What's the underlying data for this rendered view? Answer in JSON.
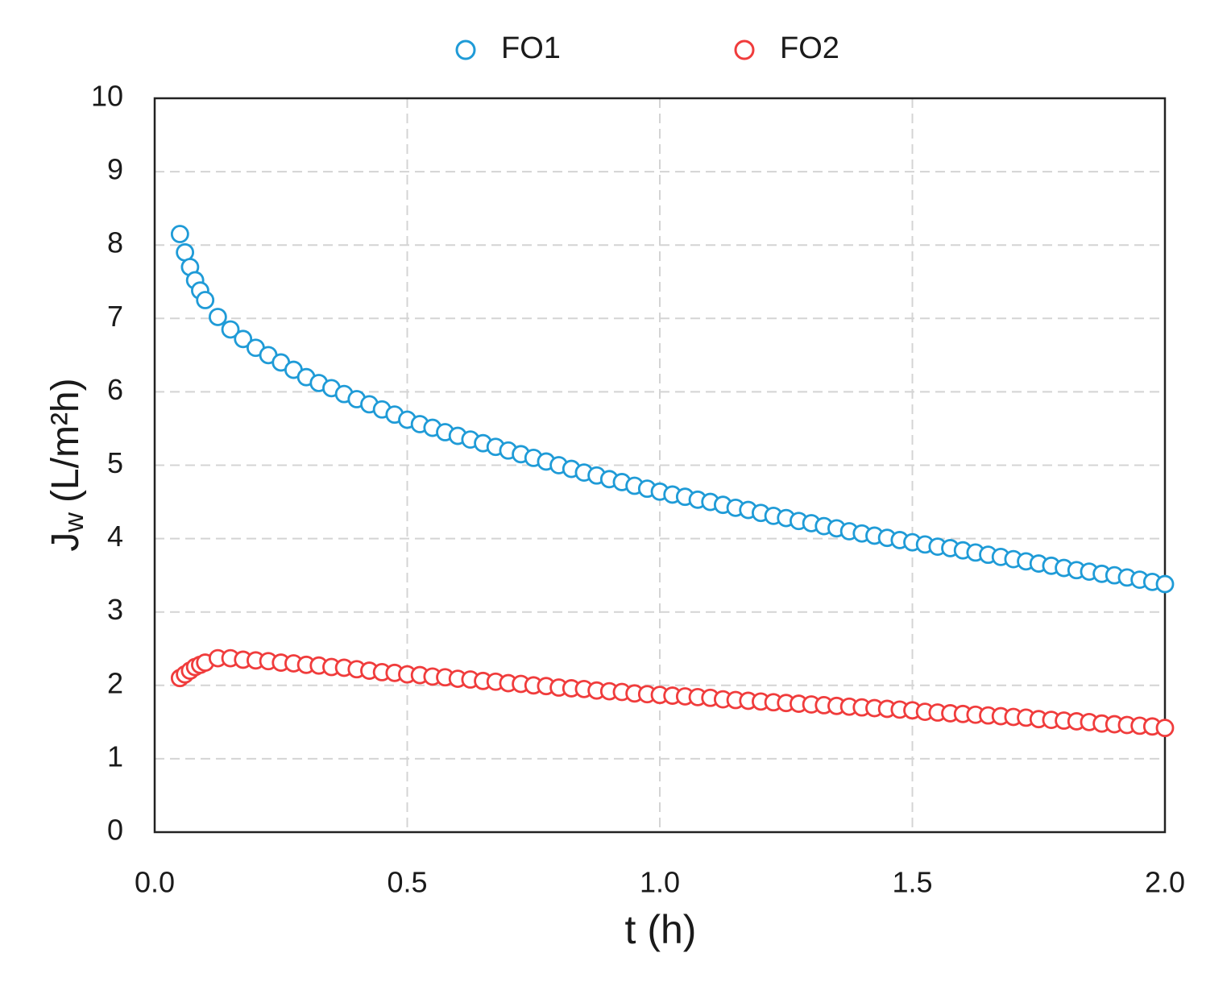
{
  "chart_data": {
    "type": "scatter",
    "xlabel": "t (h)",
    "ylabel": {
      "main": "J",
      "sub": "w",
      "rest": "(L/m²h)"
    },
    "xlim": [
      0,
      2
    ],
    "ylim": [
      0,
      10
    ],
    "xticks": [
      {
        "value": 0,
        "label": "0.0"
      },
      {
        "value": 0.5,
        "label": "0.5"
      },
      {
        "value": 1,
        "label": "1.0"
      },
      {
        "value": 1.5,
        "label": "1.5"
      },
      {
        "value": 2,
        "label": "2.0"
      }
    ],
    "yticks": [
      0,
      1,
      2,
      3,
      4,
      5,
      6,
      7,
      8,
      9,
      10
    ],
    "grid": true,
    "legend": "top",
    "x": [
      0.05,
      0.06,
      0.07,
      0.08,
      0.09,
      0.1,
      0.125,
      0.15,
      0.175,
      0.2,
      0.225,
      0.25,
      0.275,
      0.3,
      0.325,
      0.35,
      0.375,
      0.4,
      0.425,
      0.45,
      0.475,
      0.5,
      0.525,
      0.55,
      0.575,
      0.6,
      0.625,
      0.65,
      0.675,
      0.7,
      0.725,
      0.75,
      0.775,
      0.8,
      0.825,
      0.85,
      0.875,
      0.9,
      0.925,
      0.95,
      0.975,
      1.0,
      1.025,
      1.05,
      1.075,
      1.1,
      1.125,
      1.15,
      1.175,
      1.2,
      1.225,
      1.25,
      1.275,
      1.3,
      1.325,
      1.35,
      1.375,
      1.4,
      1.425,
      1.45,
      1.475,
      1.5,
      1.525,
      1.55,
      1.575,
      1.6,
      1.625,
      1.65,
      1.675,
      1.7,
      1.725,
      1.75,
      1.775,
      1.8,
      1.825,
      1.85,
      1.875,
      1.9,
      1.925,
      1.95,
      1.975,
      2.0
    ],
    "series": [
      {
        "name": "FO1",
        "color": "#1f9bd7",
        "values": [
          8.15,
          7.9,
          7.7,
          7.52,
          7.38,
          7.25,
          7.02,
          6.85,
          6.72,
          6.6,
          6.5,
          6.4,
          6.3,
          6.2,
          6.12,
          6.05,
          5.97,
          5.9,
          5.83,
          5.76,
          5.69,
          5.62,
          5.56,
          5.51,
          5.45,
          5.4,
          5.35,
          5.3,
          5.25,
          5.2,
          5.15,
          5.1,
          5.05,
          5.0,
          4.95,
          4.9,
          4.86,
          4.81,
          4.77,
          4.72,
          4.68,
          4.64,
          4.6,
          4.57,
          4.53,
          4.5,
          4.46,
          4.42,
          4.39,
          4.35,
          4.31,
          4.28,
          4.24,
          4.21,
          4.17,
          4.14,
          4.1,
          4.07,
          4.04,
          4.01,
          3.98,
          3.95,
          3.92,
          3.89,
          3.87,
          3.84,
          3.81,
          3.78,
          3.75,
          3.72,
          3.69,
          3.66,
          3.63,
          3.6,
          3.57,
          3.55,
          3.52,
          3.5,
          3.47,
          3.44,
          3.41,
          3.38
        ]
      },
      {
        "name": "FO2",
        "color": "#f03c3c",
        "values": [
          2.1,
          2.15,
          2.2,
          2.25,
          2.28,
          2.31,
          2.37,
          2.37,
          2.35,
          2.34,
          2.33,
          2.31,
          2.3,
          2.28,
          2.27,
          2.25,
          2.24,
          2.22,
          2.2,
          2.18,
          2.17,
          2.15,
          2.14,
          2.12,
          2.11,
          2.09,
          2.08,
          2.06,
          2.05,
          2.03,
          2.02,
          2.0,
          1.99,
          1.97,
          1.96,
          1.95,
          1.93,
          1.92,
          1.91,
          1.89,
          1.88,
          1.87,
          1.86,
          1.85,
          1.84,
          1.83,
          1.81,
          1.8,
          1.79,
          1.78,
          1.77,
          1.76,
          1.75,
          1.74,
          1.73,
          1.72,
          1.71,
          1.7,
          1.69,
          1.68,
          1.67,
          1.66,
          1.64,
          1.63,
          1.62,
          1.61,
          1.6,
          1.59,
          1.58,
          1.57,
          1.56,
          1.54,
          1.53,
          1.52,
          1.51,
          1.5,
          1.48,
          1.47,
          1.46,
          1.45,
          1.44,
          1.42
        ]
      }
    ]
  }
}
